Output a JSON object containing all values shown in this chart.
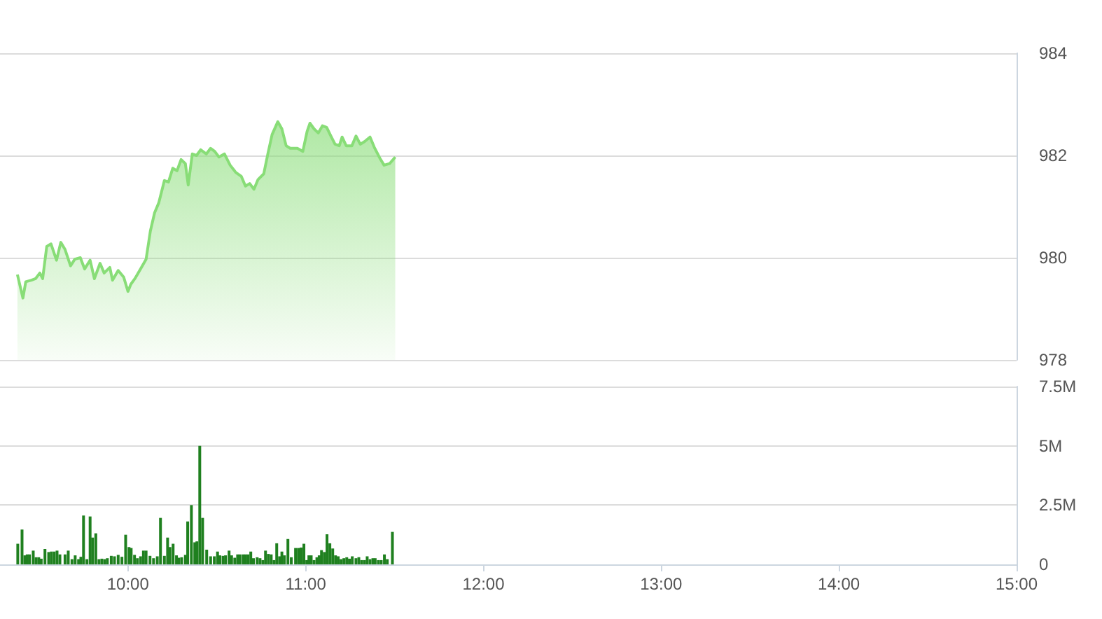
{
  "chart_data": [
    {
      "type": "area",
      "color": "#88dd77",
      "grid": "y",
      "tick_labels": "y",
      "xlim": [
        9.28,
        15
      ],
      "ylim": [
        978,
        984
      ],
      "yticks": [
        978,
        980,
        982,
        984
      ],
      "x": [
        9.378,
        9.409,
        9.425,
        9.457,
        9.48,
        9.504,
        9.52,
        9.543,
        9.567,
        9.598,
        9.622,
        9.646,
        9.677,
        9.701,
        9.732,
        9.756,
        9.787,
        9.811,
        9.843,
        9.866,
        9.898,
        9.913,
        9.945,
        9.976,
        10.0,
        10.016,
        10.039,
        10.071,
        10.102,
        10.126,
        10.15,
        10.173,
        10.205,
        10.228,
        10.252,
        10.276,
        10.299,
        10.323,
        10.339,
        10.362,
        10.386,
        10.409,
        10.441,
        10.465,
        10.488,
        10.512,
        10.543,
        10.575,
        10.606,
        10.638,
        10.661,
        10.685,
        10.709,
        10.732,
        10.764,
        10.787,
        10.811,
        10.843,
        10.866,
        10.89,
        10.913,
        10.953,
        10.984,
        11.008,
        11.024,
        11.047,
        11.071,
        11.094,
        11.118,
        11.142,
        11.165,
        11.189,
        11.205,
        11.228,
        11.26,
        11.283,
        11.307,
        11.331,
        11.362,
        11.386,
        11.417,
        11.441,
        11.472,
        11.504
      ],
      "values": [
        979.67,
        979.21,
        979.53,
        979.56,
        979.59,
        979.7,
        979.59,
        980.22,
        980.27,
        979.95,
        980.3,
        980.16,
        979.84,
        979.97,
        980.0,
        979.78,
        979.95,
        979.59,
        979.89,
        979.7,
        979.81,
        979.56,
        979.75,
        979.62,
        979.34,
        979.48,
        979.59,
        979.78,
        979.97,
        980.52,
        980.88,
        981.07,
        981.51,
        981.48,
        981.75,
        981.7,
        981.92,
        981.84,
        981.42,
        982.03,
        982.0,
        982.11,
        982.03,
        982.14,
        982.08,
        981.97,
        982.03,
        981.81,
        981.67,
        981.59,
        981.4,
        981.45,
        981.34,
        981.53,
        981.64,
        982.03,
        982.41,
        982.66,
        982.52,
        982.19,
        982.14,
        982.14,
        982.08,
        982.47,
        982.63,
        982.52,
        982.44,
        982.58,
        982.55,
        982.38,
        982.22,
        982.19,
        982.36,
        982.19,
        982.19,
        982.38,
        982.22,
        982.27,
        982.36,
        982.16,
        981.95,
        981.81,
        981.84,
        981.97
      ]
    },
    {
      "type": "bar",
      "color": "#1f801f",
      "grid": "y",
      "xlim": [
        9.28,
        15
      ],
      "xticks": [
        {
          "value": 10,
          "label": "10:00"
        },
        {
          "value": 11,
          "label": "11:00"
        },
        {
          "value": 12,
          "label": "12:00"
        },
        {
          "value": 13,
          "label": "13:00"
        },
        {
          "value": 14,
          "label": "14:00"
        },
        {
          "value": 15,
          "label": "15:00"
        }
      ],
      "ylim": [
        0,
        7.5
      ],
      "yticks": [
        {
          "value": 0,
          "label": "0"
        },
        {
          "value": 2.5,
          "label": "2.5M"
        },
        {
          "value": 5,
          "label": "5M"
        },
        {
          "value": 7.5,
          "label": "7.5M"
        }
      ],
      "x": [
        9.38,
        9.404,
        9.42,
        9.433,
        9.446,
        9.467,
        9.483,
        9.498,
        9.512,
        9.533,
        9.554,
        9.569,
        9.585,
        9.601,
        9.617,
        9.646,
        9.664,
        9.685,
        9.703,
        9.722,
        9.735,
        9.75,
        9.769,
        9.787,
        9.801,
        9.819,
        9.837,
        9.853,
        9.869,
        9.884,
        9.906,
        9.924,
        9.945,
        9.966,
        9.987,
        10.006,
        10.018,
        10.037,
        10.053,
        10.071,
        10.087,
        10.102,
        10.124,
        10.144,
        10.165,
        10.183,
        10.205,
        10.223,
        10.236,
        10.254,
        10.273,
        10.286,
        10.302,
        10.323,
        10.336,
        10.357,
        10.376,
        10.388,
        10.404,
        10.42,
        10.443,
        10.465,
        10.486,
        10.504,
        10.517,
        10.535,
        10.549,
        10.569,
        10.583,
        10.601,
        10.617,
        10.63,
        10.648,
        10.661,
        10.675,
        10.691,
        10.706,
        10.727,
        10.743,
        10.759,
        10.774,
        10.79,
        10.806,
        10.822,
        10.837,
        10.853,
        10.866,
        10.88,
        10.9,
        10.919,
        10.943,
        10.959,
        10.974,
        10.99,
        11.006,
        11.018,
        11.031,
        11.047,
        11.063,
        11.076,
        11.089,
        11.105,
        11.12,
        11.136,
        11.152,
        11.168,
        11.183,
        11.199,
        11.215,
        11.231,
        11.246,
        11.262,
        11.283,
        11.299,
        11.315,
        11.331,
        11.346,
        11.362,
        11.378,
        11.391,
        11.409,
        11.425,
        11.443,
        11.459,
        11.488
      ],
      "values": [
        0.87,
        1.47,
        0.38,
        0.42,
        0.42,
        0.58,
        0.3,
        0.3,
        0.24,
        0.65,
        0.52,
        0.54,
        0.54,
        0.58,
        0.42,
        0.42,
        0.58,
        0.22,
        0.38,
        0.22,
        0.32,
        2.06,
        0.22,
        2.02,
        1.13,
        1.31,
        0.22,
        0.24,
        0.22,
        0.26,
        0.36,
        0.34,
        0.4,
        0.32,
        1.25,
        0.73,
        0.69,
        0.4,
        0.26,
        0.34,
        0.58,
        0.58,
        0.36,
        0.26,
        0.34,
        1.96,
        0.36,
        1.13,
        0.73,
        0.87,
        0.38,
        0.28,
        0.3,
        0.4,
        1.81,
        2.5,
        0.93,
        0.97,
        5.0,
        1.96,
        0.62,
        0.34,
        0.34,
        0.54,
        0.38,
        0.36,
        0.38,
        0.58,
        0.38,
        0.28,
        0.42,
        0.42,
        0.42,
        0.42,
        0.42,
        0.54,
        0.26,
        0.3,
        0.26,
        0.18,
        0.58,
        0.44,
        0.42,
        0.18,
        0.89,
        0.34,
        0.54,
        0.38,
        1.07,
        0.3,
        0.69,
        0.69,
        0.71,
        0.87,
        0.18,
        0.38,
        0.38,
        0.18,
        0.3,
        0.38,
        0.6,
        0.52,
        1.27,
        0.89,
        0.67,
        0.38,
        0.34,
        0.22,
        0.26,
        0.3,
        0.24,
        0.34,
        0.26,
        0.3,
        0.18,
        0.18,
        0.34,
        0.22,
        0.26,
        0.26,
        0.18,
        0.18,
        0.42,
        0.22,
        1.37
      ]
    }
  ]
}
